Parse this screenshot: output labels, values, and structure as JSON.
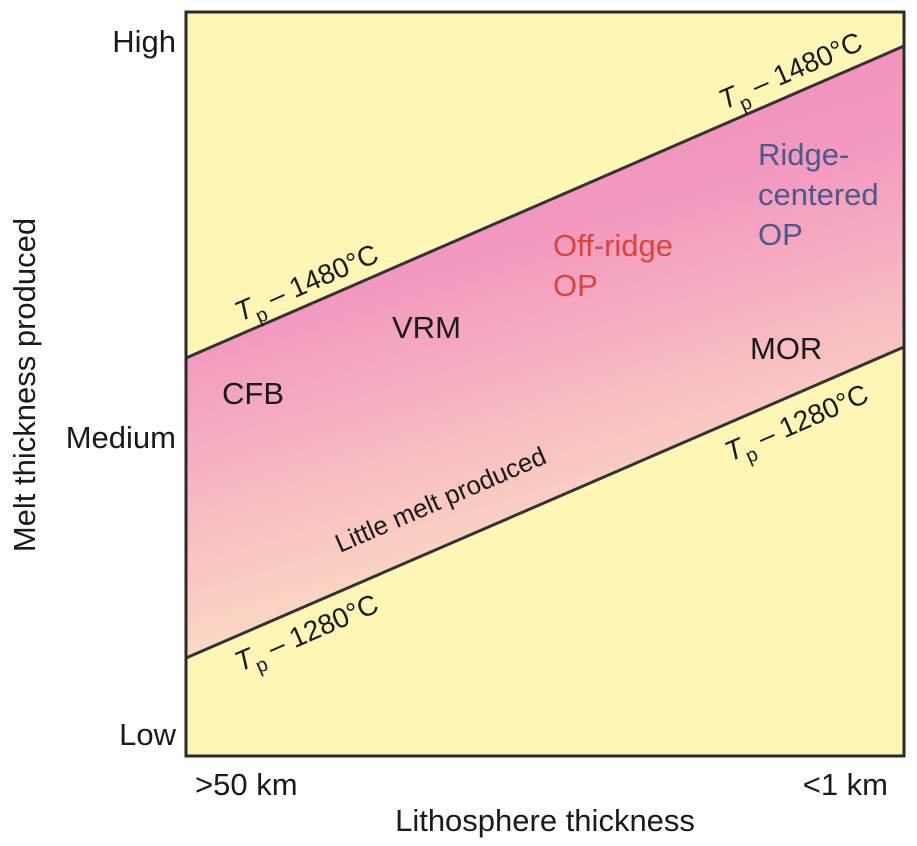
{
  "y_axis": {
    "title": "Melt thickness produced",
    "ticks": [
      "High",
      "Medium",
      "Low"
    ]
  },
  "x_axis": {
    "title": "Lithosphere thickness",
    "left_label": ">50 km",
    "right_label": "<1 km"
  },
  "lines": {
    "upper": {
      "T": "T",
      "sub": "p",
      "value": " – 1480°C"
    },
    "lower": {
      "T": "T",
      "sub": "p",
      "value": " – 1280°C"
    }
  },
  "regions": {
    "cfb": "CFB",
    "vrm": "VRM",
    "offridge_line1": "Off-ridge",
    "offridge_line2": "OP",
    "ridge_line1": "Ridge-",
    "ridge_line2": "centered",
    "ridge_line3": "OP",
    "mor": "MOR",
    "little_melt": "Little melt produced"
  },
  "colors": {
    "background": "#fdf6b5",
    "band_top": "#f090b8",
    "band_bottom": "#fde6c0",
    "offridge": "#d9453a",
    "ridge": "#4a5a8a",
    "text": "#1a1a1a"
  }
}
